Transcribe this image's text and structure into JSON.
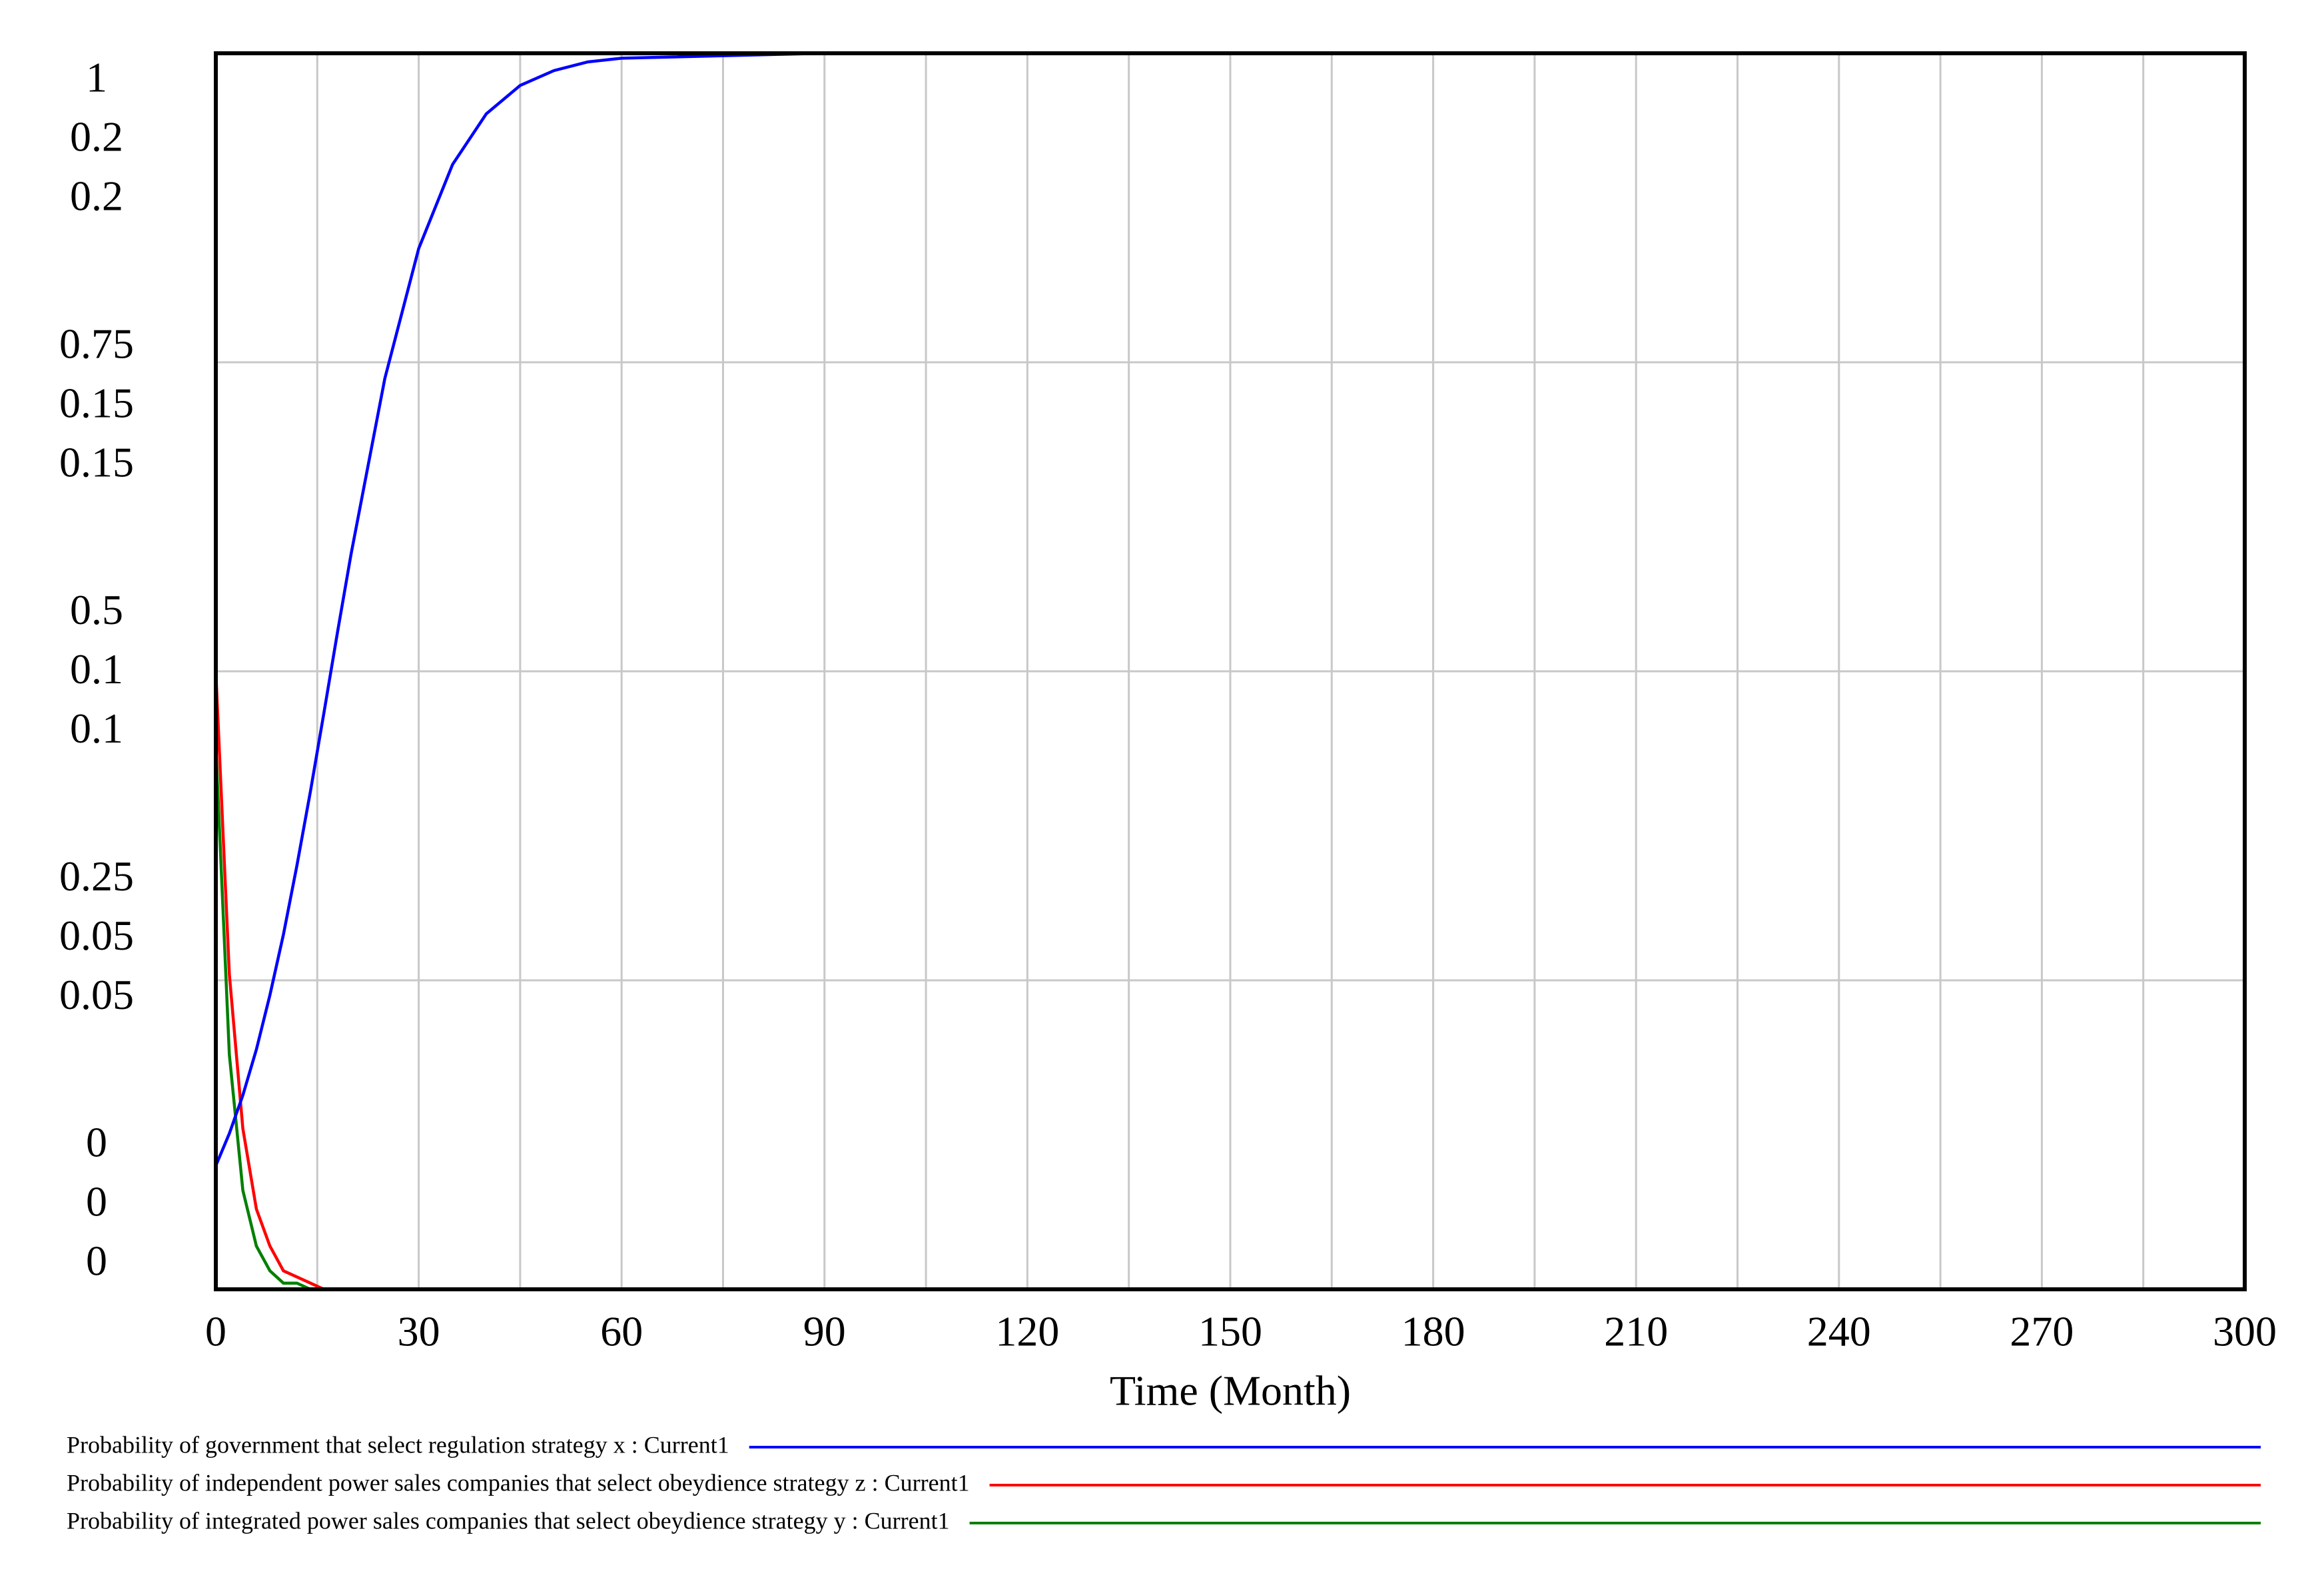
{
  "chart_data": {
    "type": "line",
    "x_label": "Time (Month)",
    "x": [
      0,
      2,
      4,
      6,
      8,
      10,
      12,
      14,
      16,
      18,
      20,
      25,
      30,
      35,
      40,
      45,
      50,
      55,
      60,
      90,
      120,
      150,
      180,
      210,
      240,
      270,
      300
    ],
    "xlim": [
      0,
      300
    ],
    "xticks": [
      0,
      30,
      60,
      90,
      120,
      150,
      180,
      210,
      240,
      270,
      300
    ],
    "xgrid": [
      15,
      45,
      75,
      105,
      135,
      165,
      195,
      225,
      255,
      285
    ],
    "grid": true,
    "series": [
      {
        "name": "Probability of government that select regulation strategy x : Current1",
        "color": "#0000ff",
        "ylim": [
          0,
          1
        ],
        "yticks": [
          0,
          0.25,
          0.5,
          0.75,
          1
        ],
        "values": [
          0.1,
          0.126,
          0.157,
          0.194,
          0.238,
          0.287,
          0.343,
          0.403,
          0.467,
          0.532,
          0.595,
          0.737,
          0.842,
          0.91,
          0.951,
          0.974,
          0.986,
          0.993,
          0.996,
          1,
          1,
          1,
          1,
          1,
          1,
          1,
          1
        ]
      },
      {
        "name": "Probability of independent power sales companies that select obeydience strategy z : Current1",
        "color": "#ff0000",
        "ylim": [
          0,
          0.2
        ],
        "yticks": [
          0,
          0.05,
          0.1,
          0.15,
          0.2
        ],
        "values": [
          0.1,
          0.051,
          0.026,
          0.013,
          0.007,
          0.003,
          0.002,
          0.001,
          0,
          0,
          0,
          0,
          0,
          0,
          0,
          0,
          0,
          0,
          0,
          0,
          0,
          0,
          0,
          0,
          0,
          0,
          0
        ]
      },
      {
        "name": "Probability of integrated power sales companies that select obeydience strategy y : Current1",
        "color": "#008000",
        "ylim": [
          0,
          0.2
        ],
        "yticks": [
          0,
          0.05,
          0.1,
          0.15,
          0.2
        ],
        "values": [
          0.088,
          0.038,
          0.016,
          0.007,
          0.003,
          0.001,
          0.001,
          0,
          0,
          0,
          0,
          0,
          0,
          0,
          0,
          0,
          0,
          0,
          0,
          0,
          0,
          0,
          0,
          0,
          0,
          0,
          0
        ]
      }
    ]
  }
}
